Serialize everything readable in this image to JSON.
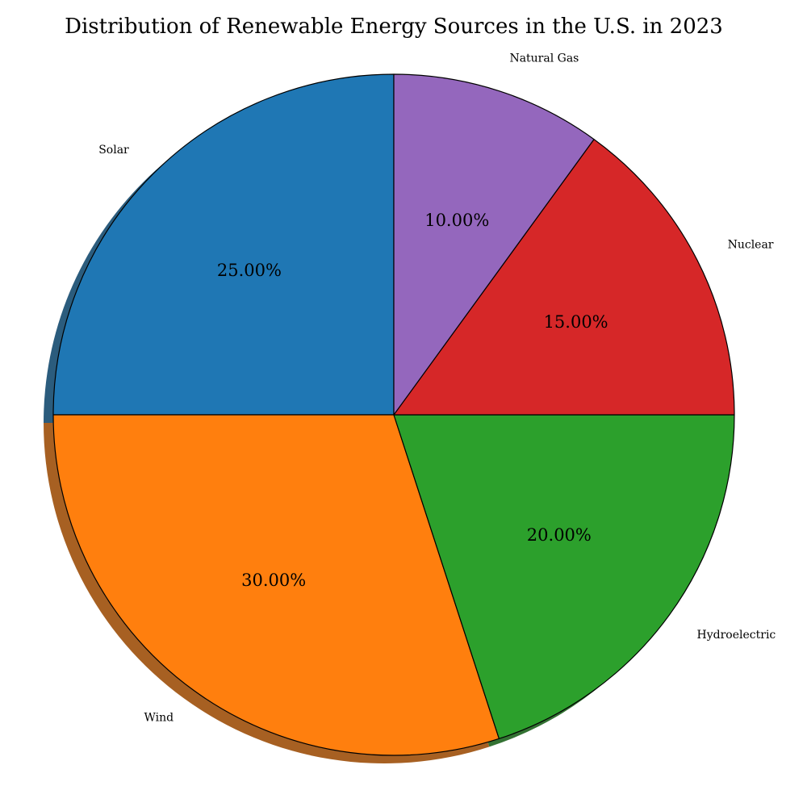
{
  "chart_data": {
    "type": "pie",
    "title": "Distribution of Renewable Energy Sources in the U.S. in 2023",
    "categories": [
      "Solar",
      "Wind",
      "Hydroelectric",
      "Nuclear",
      "Natural Gas"
    ],
    "values": [
      25,
      30,
      20,
      15,
      10
    ],
    "percent_labels": [
      "25.00%",
      "30.00%",
      "20.00%",
      "15.00%",
      "10.00%"
    ],
    "colors": [
      "#1f77b4",
      "#ff7f0e",
      "#2ca02c",
      "#d62728",
      "#9467bd"
    ],
    "start_angle_deg": 90,
    "direction": "counterclockwise",
    "shadow": true,
    "legend": "none"
  }
}
